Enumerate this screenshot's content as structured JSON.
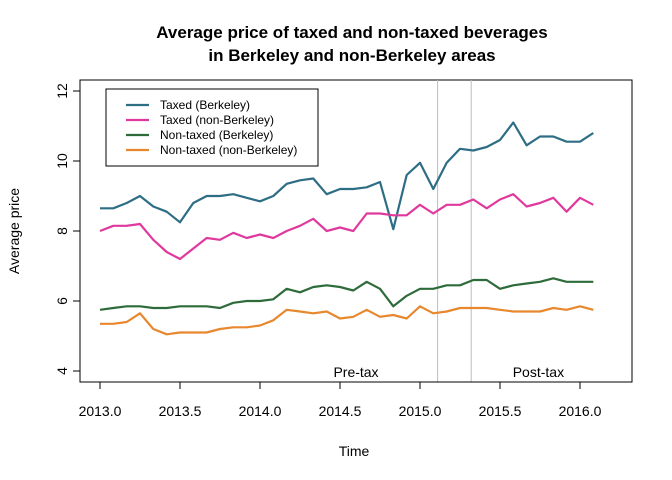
{
  "chart_data": {
    "type": "line",
    "title": [
      "Average price of taxed and non-taxed beverages",
      "in Berkeley and non-Berkeley areas"
    ],
    "xlabel": "Time",
    "ylabel": "Average price",
    "xlim": [
      2012.875,
      2016.35
    ],
    "ylim": [
      3.7,
      12.3
    ],
    "xticks": [
      2013.0,
      2013.5,
      2014.0,
      2014.5,
      2015.0,
      2015.5,
      2016.0
    ],
    "xtick_labels": [
      "2013.0",
      "2013.5",
      "2014.0",
      "2014.5",
      "2015.0",
      "2015.5",
      "2016.0"
    ],
    "yticks": [
      4,
      6,
      8,
      10,
      12
    ],
    "ytick_labels": [
      "4",
      "6",
      "8",
      "10",
      "12"
    ],
    "x_start": 2013.0,
    "x_step": 0.08333,
    "grid": false,
    "legend_position": "top-left",
    "vlines": [
      2015.11,
      2015.32
    ],
    "vline_color": "#bdbdbd",
    "annotations": [
      {
        "text": "Pre-tax",
        "x": 2014.6,
        "y": 4
      },
      {
        "text": "Post-tax",
        "x": 2015.74,
        "y": 4
      }
    ],
    "series": [
      {
        "name": "Taxed (Berkeley)",
        "color": "#2e6e85",
        "values": [
          8.65,
          8.65,
          8.8,
          9.0,
          8.7,
          8.55,
          8.25,
          8.8,
          9.0,
          9.0,
          9.05,
          8.95,
          8.85,
          9.0,
          9.35,
          9.45,
          9.5,
          9.05,
          9.2,
          9.2,
          9.25,
          9.4,
          8.05,
          9.6,
          9.95,
          9.2,
          9.95,
          10.35,
          10.3,
          10.4,
          10.6,
          11.1,
          10.45,
          10.7,
          10.7,
          10.55,
          10.55,
          10.8
        ]
      },
      {
        "name": "Taxed (non-Berkeley)",
        "color": "#e0399d",
        "values": [
          8.0,
          8.15,
          8.15,
          8.2,
          7.75,
          7.4,
          7.2,
          7.5,
          7.8,
          7.75,
          7.95,
          7.8,
          7.9,
          7.8,
          8.0,
          8.15,
          8.35,
          8.0,
          8.1,
          8.0,
          8.5,
          8.5,
          8.45,
          8.45,
          8.75,
          8.5,
          8.75,
          8.75,
          8.9,
          8.65,
          8.9,
          9.05,
          8.7,
          8.8,
          8.95,
          8.55,
          8.95,
          8.75
        ]
      },
      {
        "name": "Non-taxed (Berkeley)",
        "color": "#2e6b3a",
        "values": [
          5.75,
          5.8,
          5.85,
          5.85,
          5.8,
          5.8,
          5.85,
          5.85,
          5.85,
          5.8,
          5.95,
          6.0,
          6.0,
          6.05,
          6.35,
          6.25,
          6.4,
          6.45,
          6.4,
          6.3,
          6.55,
          6.35,
          5.85,
          6.15,
          6.35,
          6.35,
          6.45,
          6.45,
          6.6,
          6.6,
          6.35,
          6.45,
          6.5,
          6.55,
          6.65,
          6.55,
          6.55,
          6.55
        ]
      },
      {
        "name": " Non-taxed (non-Berkeley)",
        "color": "#e8882e",
        "values": [
          5.35,
          5.35,
          5.4,
          5.65,
          5.2,
          5.05,
          5.1,
          5.1,
          5.1,
          5.2,
          5.25,
          5.25,
          5.3,
          5.45,
          5.75,
          5.7,
          5.65,
          5.7,
          5.5,
          5.55,
          5.75,
          5.55,
          5.6,
          5.5,
          5.85,
          5.65,
          5.7,
          5.8,
          5.8,
          5.8,
          5.75,
          5.7,
          5.7,
          5.7,
          5.8,
          5.75,
          5.85,
          5.75
        ]
      }
    ]
  }
}
